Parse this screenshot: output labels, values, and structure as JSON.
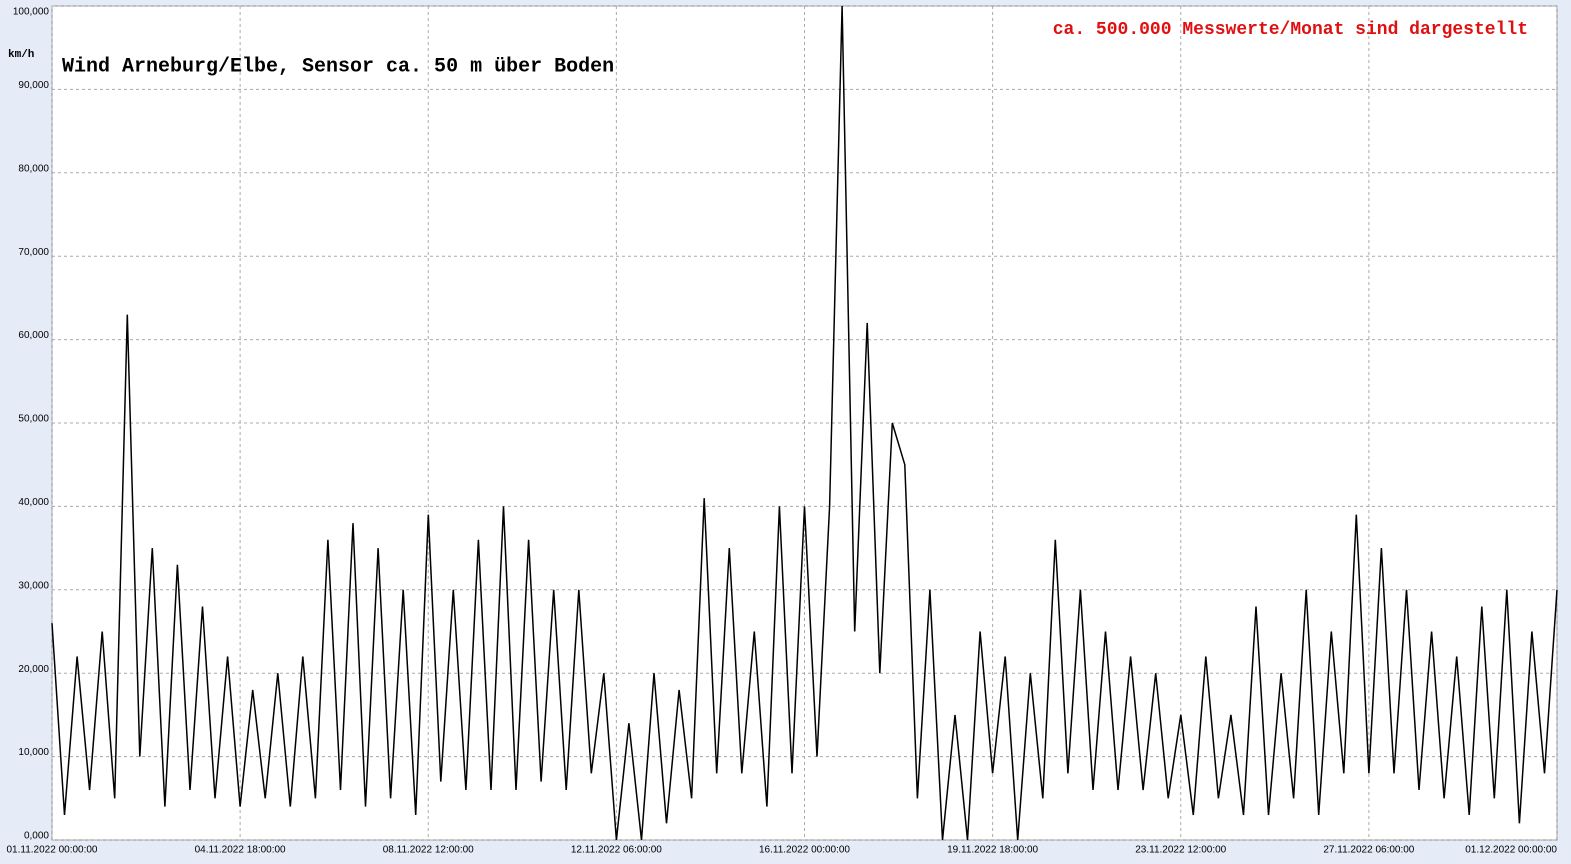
{
  "chart_data": {
    "type": "line",
    "title": "Wind  Arneburg/Elbe, Sensor ca. 50 m über Boden",
    "annotation": "ca. 500.000 Messwerte/Monat sind dargestellt",
    "ylabel": "km/h",
    "color": "#000000",
    "grid": true,
    "ylim": [
      0,
      100
    ],
    "yticks": [
      {
        "value": 0,
        "label": "0,000"
      },
      {
        "value": 10,
        "label": "10,000"
      },
      {
        "value": 20,
        "label": "20,000"
      },
      {
        "value": 30,
        "label": "30,000"
      },
      {
        "value": 40,
        "label": "40,000"
      },
      {
        "value": 50,
        "label": "50,000"
      },
      {
        "value": 60,
        "label": "60,000"
      },
      {
        "value": 70,
        "label": "70,000"
      },
      {
        "value": 80,
        "label": "80,000"
      },
      {
        "value": 90,
        "label": "90,000"
      },
      {
        "value": 100,
        "label": "100,000"
      }
    ],
    "xlim": [
      "01.11.2022 00:00:00",
      "01.12.2022 00:00:00"
    ],
    "xticks": [
      "01.11.2022 00:00:00",
      "04.11.2022 18:00:00",
      "08.11.2022 12:00:00",
      "12.11.2022 06:00:00",
      "16.11.2022 00:00:00",
      "19.11.2022 18:00:00",
      "23.11.2022 12:00:00",
      "27.11.2022 06:00:00",
      "01.12.2022 00:00:00"
    ],
    "x": [
      "01.11.2022 00:00:00",
      "01.11.2022 06:00:00",
      "01.11.2022 12:00:00",
      "01.11.2022 18:00:00",
      "02.11.2022 00:00:00",
      "02.11.2022 06:00:00",
      "02.11.2022 12:00:00",
      "02.11.2022 18:00:00",
      "03.11.2022 00:00:00",
      "03.11.2022 06:00:00",
      "03.11.2022 12:00:00",
      "03.11.2022 18:00:00",
      "04.11.2022 00:00:00",
      "04.11.2022 06:00:00",
      "04.11.2022 12:00:00",
      "04.11.2022 18:00:00",
      "05.11.2022 00:00:00",
      "05.11.2022 06:00:00",
      "05.11.2022 12:00:00",
      "05.11.2022 18:00:00",
      "06.11.2022 00:00:00",
      "06.11.2022 06:00:00",
      "06.11.2022 12:00:00",
      "06.11.2022 18:00:00",
      "07.11.2022 00:00:00",
      "07.11.2022 06:00:00",
      "07.11.2022 12:00:00",
      "07.11.2022 18:00:00",
      "08.11.2022 00:00:00",
      "08.11.2022 06:00:00",
      "08.11.2022 12:00:00",
      "08.11.2022 18:00:00",
      "09.11.2022 00:00:00",
      "09.11.2022 06:00:00",
      "09.11.2022 12:00:00",
      "09.11.2022 18:00:00",
      "10.11.2022 00:00:00",
      "10.11.2022 06:00:00",
      "10.11.2022 12:00:00",
      "10.11.2022 18:00:00",
      "11.11.2022 00:00:00",
      "11.11.2022 06:00:00",
      "11.11.2022 12:00:00",
      "11.11.2022 18:00:00",
      "12.11.2022 00:00:00",
      "12.11.2022 06:00:00",
      "12.11.2022 12:00:00",
      "12.11.2022 18:00:00",
      "13.11.2022 00:00:00",
      "13.11.2022 06:00:00",
      "13.11.2022 12:00:00",
      "13.11.2022 18:00:00",
      "14.11.2022 00:00:00",
      "14.11.2022 06:00:00",
      "14.11.2022 12:00:00",
      "14.11.2022 18:00:00",
      "15.11.2022 00:00:00",
      "15.11.2022 06:00:00",
      "15.11.2022 12:00:00",
      "15.11.2022 18:00:00",
      "16.11.2022 00:00:00",
      "16.11.2022 06:00:00",
      "16.11.2022 12:00:00",
      "16.11.2022 18:00:00",
      "17.11.2022 00:00:00",
      "17.11.2022 06:00:00",
      "17.11.2022 12:00:00",
      "17.11.2022 18:00:00",
      "18.11.2022 00:00:00",
      "18.11.2022 06:00:00",
      "18.11.2022 12:00:00",
      "18.11.2022 18:00:00",
      "19.11.2022 00:00:00",
      "19.11.2022 06:00:00",
      "19.11.2022 12:00:00",
      "19.11.2022 18:00:00",
      "20.11.2022 00:00:00",
      "20.11.2022 06:00:00",
      "20.11.2022 12:00:00",
      "20.11.2022 18:00:00",
      "21.11.2022 00:00:00",
      "21.11.2022 06:00:00",
      "21.11.2022 12:00:00",
      "21.11.2022 18:00:00",
      "22.11.2022 00:00:00",
      "22.11.2022 06:00:00",
      "22.11.2022 12:00:00",
      "22.11.2022 18:00:00",
      "23.11.2022 00:00:00",
      "23.11.2022 06:00:00",
      "23.11.2022 12:00:00",
      "23.11.2022 18:00:00",
      "24.11.2022 00:00:00",
      "24.11.2022 06:00:00",
      "24.11.2022 12:00:00",
      "24.11.2022 18:00:00",
      "25.11.2022 00:00:00",
      "25.11.2022 06:00:00",
      "25.11.2022 12:00:00",
      "25.11.2022 18:00:00",
      "26.11.2022 00:00:00",
      "26.11.2022 06:00:00",
      "26.11.2022 12:00:00",
      "26.11.2022 18:00:00",
      "27.11.2022 00:00:00",
      "27.11.2022 06:00:00",
      "27.11.2022 12:00:00",
      "27.11.2022 18:00:00",
      "28.11.2022 00:00:00",
      "28.11.2022 06:00:00",
      "28.11.2022 12:00:00",
      "28.11.2022 18:00:00",
      "29.11.2022 00:00:00",
      "29.11.2022 06:00:00",
      "29.11.2022 12:00:00",
      "29.11.2022 18:00:00",
      "30.11.2022 00:00:00",
      "30.11.2022 06:00:00",
      "30.11.2022 12:00:00",
      "30.11.2022 18:00:00",
      "01.12.2022 00:00:00"
    ],
    "values": [
      26,
      3,
      22,
      6,
      25,
      5,
      63,
      10,
      35,
      4,
      33,
      6,
      28,
      5,
      22,
      4,
      18,
      5,
      20,
      4,
      22,
      5,
      36,
      6,
      38,
      4,
      35,
      5,
      30,
      3,
      39,
      7,
      30,
      6,
      36,
      6,
      40,
      6,
      36,
      7,
      30,
      6,
      30,
      8,
      20,
      0,
      14,
      0,
      20,
      2,
      18,
      5,
      41,
      8,
      35,
      8,
      25,
      4,
      40,
      8,
      40,
      10,
      40,
      100,
      25,
      62,
      20,
      50,
      45,
      5,
      30,
      0,
      15,
      0,
      25,
      8,
      22,
      0,
      20,
      5,
      36,
      8,
      30,
      6,
      25,
      6,
      22,
      6,
      20,
      5,
      15,
      3,
      22,
      5,
      15,
      3,
      28,
      3,
      20,
      5,
      30,
      3,
      25,
      8,
      39,
      8,
      35,
      8,
      30,
      6,
      25,
      5,
      22,
      3,
      28,
      5,
      30,
      2,
      25,
      8,
      30
    ]
  }
}
